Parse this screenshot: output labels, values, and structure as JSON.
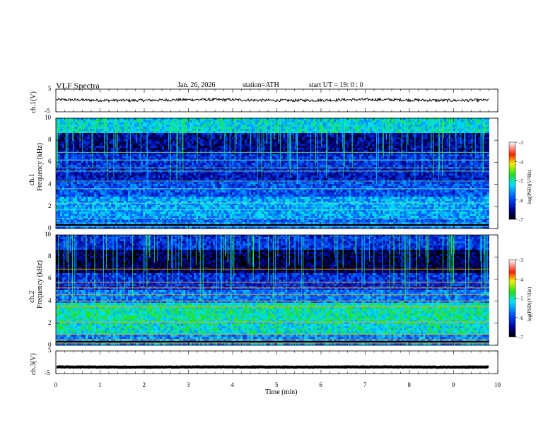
{
  "header": {
    "title": "VLF  Spectra",
    "date": "Jan. 26, 2026",
    "station": "station=ATH",
    "start_ut": "start  UT  =    19: 0   : 0"
  },
  "chart_data": [
    {
      "type": "line",
      "id": "ch1-waveform",
      "ylabel": "ch.1(V)",
      "ylim": [
        -5,
        5
      ],
      "yticks": [
        "5",
        "-5"
      ],
      "series": [
        {
          "name": "ch.1",
          "mean": 0.2,
          "noise_amplitude": 0.6
        }
      ]
    },
    {
      "type": "heatmap",
      "id": "ch1-spectrogram",
      "ylabel": "ch.1",
      "ylabel2": "Frequency (kHz)",
      "ylim": [
        0,
        10
      ],
      "yticks": [
        "0",
        "2",
        "4",
        "6",
        "8",
        "10"
      ],
      "colorbar": {
        "label": "log(PSD)(V²/Hz)",
        "range": [
          -7,
          -3
        ],
        "ticks": [
          "-3",
          "-4",
          "-5",
          "-6",
          "-7"
        ]
      }
    },
    {
      "type": "heatmap",
      "id": "ch2-spectrogram",
      "ylabel": "ch.2",
      "ylabel2": "Frequency (kHz)",
      "ylim": [
        0,
        10
      ],
      "yticks": [
        "0",
        "2",
        "4",
        "6",
        "8",
        "10"
      ],
      "colorbar": {
        "label": "log(PSD)(V²/Hz)",
        "range": [
          -7,
          -3
        ],
        "ticks": [
          "-3",
          "-4",
          "-5",
          "-6",
          "-7"
        ]
      }
    },
    {
      "type": "line",
      "id": "ch3-waveform",
      "ylabel": "ch.3(V)",
      "ylim": [
        -5,
        5
      ],
      "yticks": [
        "5",
        "-5"
      ],
      "series": [
        {
          "name": "ch.3",
          "mean": -2.1,
          "noise_amplitude": 0.1
        }
      ]
    }
  ],
  "xaxis": {
    "label": "Time  (min)",
    "range": [
      0,
      10
    ],
    "ticks": [
      "0",
      "1",
      "2",
      "3",
      "4",
      "5",
      "6",
      "7",
      "8",
      "9",
      "10"
    ],
    "data_end": 9.8
  }
}
